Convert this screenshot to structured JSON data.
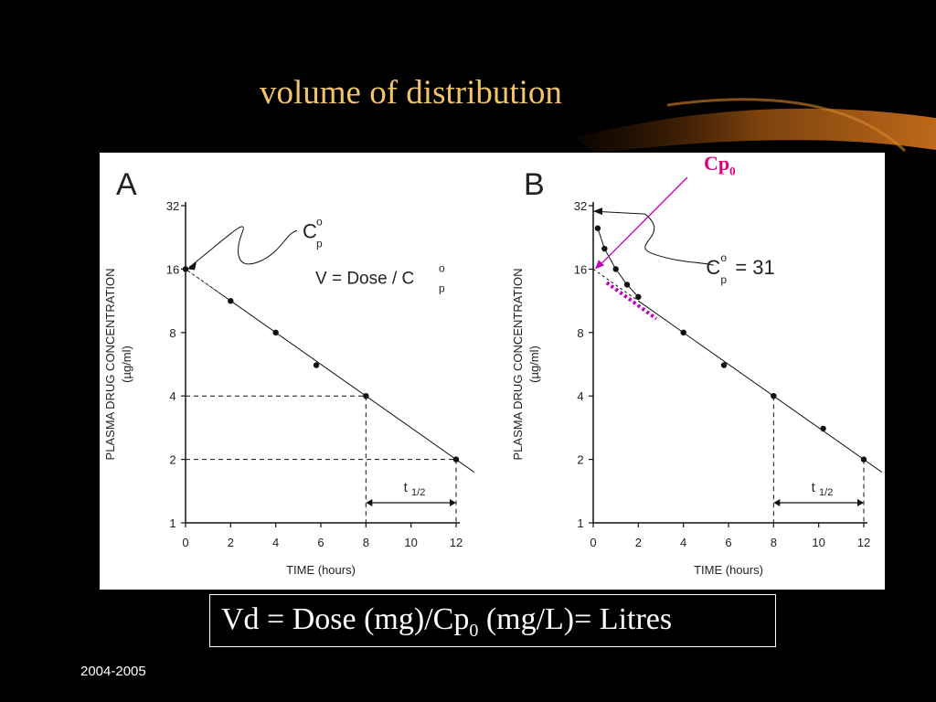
{
  "slide": {
    "title": "volume of distribution",
    "annotation": {
      "label": "Cp",
      "sub": "0",
      "color": "#e0007a"
    },
    "formula": {
      "part1": "Vd = Dose (mg)/Cp",
      "sub": "0",
      "part2": " (mg/L)= Litres"
    },
    "footer": "2004-2005",
    "title_color": "#f2c46a"
  },
  "chart_data": [
    {
      "panel": "A",
      "type": "scatter",
      "y_scale": "log2",
      "xlabel": "TIME (hours)",
      "ylabel": "PLASMA DRUG CONCENTRATION",
      "ylabel_unit": "(µg/ml)",
      "xlim": [
        0,
        12
      ],
      "ylim": [
        1,
        32
      ],
      "x_ticks": [
        0,
        2,
        4,
        6,
        8,
        10,
        12
      ],
      "y_ticks": [
        1,
        2,
        4,
        8,
        16,
        32
      ],
      "points": [
        {
          "x": 0,
          "y": 16
        },
        {
          "x": 2,
          "y": 11.3
        },
        {
          "x": 4,
          "y": 8
        },
        {
          "x": 5.8,
          "y": 5.6
        },
        {
          "x": 8,
          "y": 4
        },
        {
          "x": 12,
          "y": 2
        }
      ],
      "fit_line": {
        "x": [
          0,
          12.8
        ],
        "y": [
          16,
          1.74
        ]
      },
      "cp0": {
        "label": "C",
        "sup": "o",
        "sub": "p",
        "value": 16
      },
      "equation": {
        "text": "V = Dose / C",
        "sup": "o",
        "sub": "p"
      },
      "half_life": {
        "label": "t",
        "sub": "1/2",
        "x_from": 8,
        "x_to": 12,
        "y_from": 4,
        "y_to": 2
      }
    },
    {
      "panel": "B",
      "type": "scatter",
      "y_scale": "log2",
      "xlabel": "TIME (hours)",
      "ylabel": "PLASMA DRUG CONCENTRATION",
      "ylabel_unit": "(µg/ml)",
      "xlim": [
        0,
        12
      ],
      "ylim": [
        1,
        32
      ],
      "x_ticks": [
        0,
        2,
        4,
        6,
        8,
        10,
        12
      ],
      "y_ticks": [
        1,
        2,
        4,
        8,
        16,
        32
      ],
      "points": [
        {
          "x": 0.2,
          "y": 25
        },
        {
          "x": 0.5,
          "y": 20
        },
        {
          "x": 1,
          "y": 16
        },
        {
          "x": 1.5,
          "y": 13.5
        },
        {
          "x": 2,
          "y": 11.8
        },
        {
          "x": 4,
          "y": 8
        },
        {
          "x": 5.8,
          "y": 5.6
        },
        {
          "x": 8,
          "y": 4
        },
        {
          "x": 10.2,
          "y": 2.8
        },
        {
          "x": 12,
          "y": 2
        }
      ],
      "fit_line": {
        "x": [
          2,
          12.8
        ],
        "y": [
          11.3,
          1.74
        ]
      },
      "cp0": {
        "label": "C",
        "sup": "o",
        "sub": "p",
        "value_text": "= 31",
        "value": 31
      },
      "half_life": {
        "label": "t",
        "sub": "1/2",
        "x_from": 8,
        "x_to": 12,
        "y_from": 4,
        "y_to": 2
      }
    }
  ]
}
